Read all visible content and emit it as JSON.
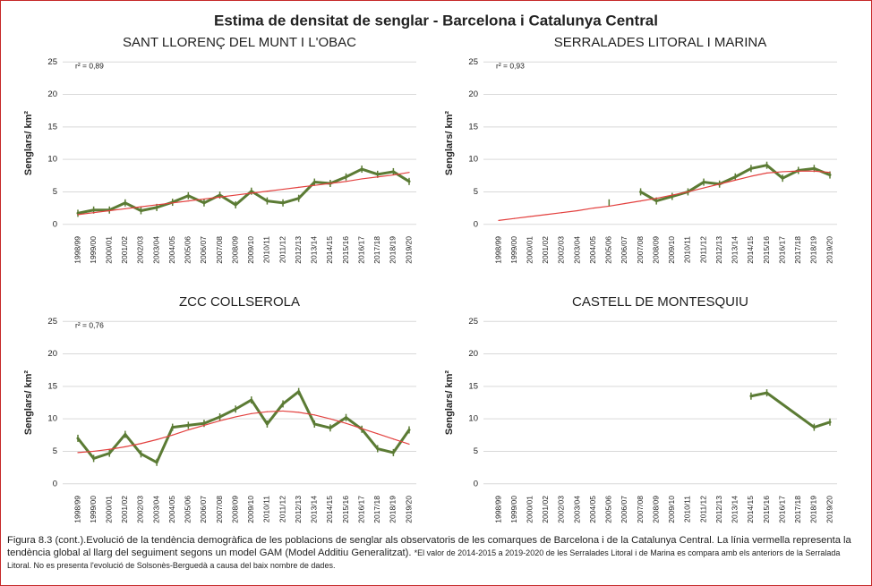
{
  "title": "Estima de densitat de senglar - Barcelona i Catalunya Central",
  "caption": "Figura 8.3 (cont.).Evolució de la tendència demogràfica de les poblacions de senglar als observatoris de les comarques de Barcelona i de la Catalunya Central. La línia vermella representa la tendència global al llarg del seguiment segons un model GAM (Model Additiu Generalitzat).",
  "note": "*El valor de 2014-2015 a 2019-2020 de les Serralades Litoral i de Marina es compara amb els anteriors de la Serralada Litoral. No es presenta l'evolució de Solsonès-Berguedà a causa del baix nombre de dades.",
  "chart_data": [
    {
      "type": "line",
      "title": "SANT LLORENÇ DEL MUNT I L'OBAC",
      "y_label": "Senglars/ km²",
      "annotation": "r² = 0,89",
      "categories": [
        "1998/99",
        "1999/00",
        "2000/01",
        "2001/02",
        "2002/03",
        "2003/04",
        "2004/05",
        "2005/06",
        "2006/07",
        "2007/08",
        "2008/09",
        "2009/10",
        "2010/11",
        "2011/12",
        "2012/13",
        "2013/14",
        "2014/15",
        "2015/16",
        "2016/17",
        "2017/18",
        "2018/19",
        "2019/20"
      ],
      "series": [
        {
          "color": "#5b7b34",
          "markers": true,
          "values": [
            1.7,
            2.2,
            2.2,
            3.3,
            2.1,
            2.6,
            3.4,
            4.4,
            3.3,
            4.5,
            3.0,
            5.1,
            3.6,
            3.3,
            4.0,
            6.5,
            6.3,
            7.3,
            8.5,
            7.7,
            8.1,
            6.6
          ]
        },
        {
          "color": "#e3413f",
          "values": [
            1.5,
            1.8,
            2.1,
            2.4,
            2.7,
            3.0,
            3.3,
            3.6,
            3.9,
            4.2,
            4.5,
            4.8,
            5.1,
            5.4,
            5.7,
            6.0,
            6.3,
            6.6,
            7.0,
            7.3,
            7.6,
            8.0
          ]
        }
      ],
      "ylim": [
        -1,
        26
      ],
      "yticks": [
        0,
        5,
        10,
        15,
        20,
        25
      ],
      "grid": true
    },
    {
      "type": "line",
      "title": "SERRALADES LITORAL I MARINA",
      "y_label": "Senglars/ km²",
      "annotation": "r² = 0,93",
      "categories": [
        "1998/99",
        "1999/00",
        "2000/01",
        "2001/02",
        "2002/03",
        "2003/04",
        "2004/05",
        "2005/06",
        "2006/07",
        "2007/08",
        "2008/09",
        "2009/10",
        "2010/11",
        "2011/12",
        "2012/13",
        "2013/14",
        "2014/15",
        "2015/16",
        "2016/17",
        "2017/18",
        "2018/19",
        "2019/20"
      ],
      "series": [
        {
          "color": "#5b7b34",
          "markers": true,
          "values": [
            null,
            null,
            null,
            null,
            null,
            null,
            null,
            3.3,
            null,
            5.0,
            3.6,
            4.3,
            5.0,
            6.5,
            6.2,
            7.3,
            8.6,
            9.1,
            7.1,
            8.3,
            8.6,
            7.6
          ]
        },
        {
          "color": "#e3413f",
          "values": [
            0.6,
            0.9,
            1.2,
            1.5,
            1.8,
            2.1,
            2.5,
            2.8,
            3.2,
            3.6,
            4.0,
            4.5,
            5.0,
            5.6,
            6.2,
            6.8,
            7.4,
            7.9,
            8.1,
            8.2,
            8.2,
            8.0
          ]
        }
      ],
      "ylim": [
        -1,
        26
      ],
      "yticks": [
        0,
        5,
        10,
        15,
        20,
        25
      ],
      "grid": true
    },
    {
      "type": "line",
      "title": "ZCC COLLSEROLA",
      "y_label": "Senglars/ km²",
      "annotation": "r² = 0,76",
      "categories": [
        "1998/99",
        "1999/00",
        "2000/01",
        "2001/02",
        "2002/03",
        "2003/04",
        "2004/05",
        "2005/06",
        "2006/07",
        "2007/08",
        "2008/09",
        "2009/10",
        "2010/11",
        "2011/12",
        "2012/13",
        "2013/14",
        "2014/15",
        "2015/16",
        "2016/17",
        "2017/18",
        "2018/19",
        "2019/20"
      ],
      "series": [
        {
          "color": "#5b7b34",
          "markers": true,
          "values": [
            7.0,
            3.9,
            4.7,
            7.6,
            4.6,
            3.3,
            8.7,
            9.0,
            9.3,
            10.3,
            11.5,
            12.9,
            9.2,
            12.3,
            14.2,
            9.2,
            8.6,
            10.2,
            8.4,
            5.4,
            4.8,
            8.3
          ]
        },
        {
          "color": "#e3413f",
          "values": [
            4.8,
            5.0,
            5.3,
            5.7,
            6.2,
            6.8,
            7.5,
            8.3,
            9.0,
            9.7,
            10.3,
            10.8,
            11.1,
            11.2,
            11.0,
            10.6,
            10.0,
            9.3,
            8.5,
            7.7,
            6.9,
            6.1
          ]
        }
      ],
      "ylim": [
        -1,
        26
      ],
      "yticks": [
        0,
        5,
        10,
        15,
        20,
        25
      ],
      "grid": true
    },
    {
      "type": "line",
      "title": "CASTELL DE MONTESQUIU",
      "y_label": "Senglars/ km²",
      "categories": [
        "1998/99",
        "1999/00",
        "2000/01",
        "2001/02",
        "2002/03",
        "2003/04",
        "2004/05",
        "2005/06",
        "2006/07",
        "2007/08",
        "2008/09",
        "2009/10",
        "2010/11",
        "2011/12",
        "2012/13",
        "2013/14",
        "2014/15",
        "2015/16",
        "2016/17",
        "2017/18",
        "2018/19",
        "2019/20"
      ],
      "series": [
        {
          "color": "#5b7b34",
          "markers": true,
          "connect_gaps": true,
          "values": [
            null,
            null,
            null,
            null,
            null,
            null,
            null,
            null,
            null,
            null,
            null,
            null,
            null,
            null,
            null,
            null,
            13.5,
            14.0,
            null,
            null,
            8.7,
            9.5
          ]
        }
      ],
      "ylim": [
        -1,
        26
      ],
      "yticks": [
        0,
        5,
        10,
        15,
        20,
        25
      ],
      "grid": true
    }
  ]
}
